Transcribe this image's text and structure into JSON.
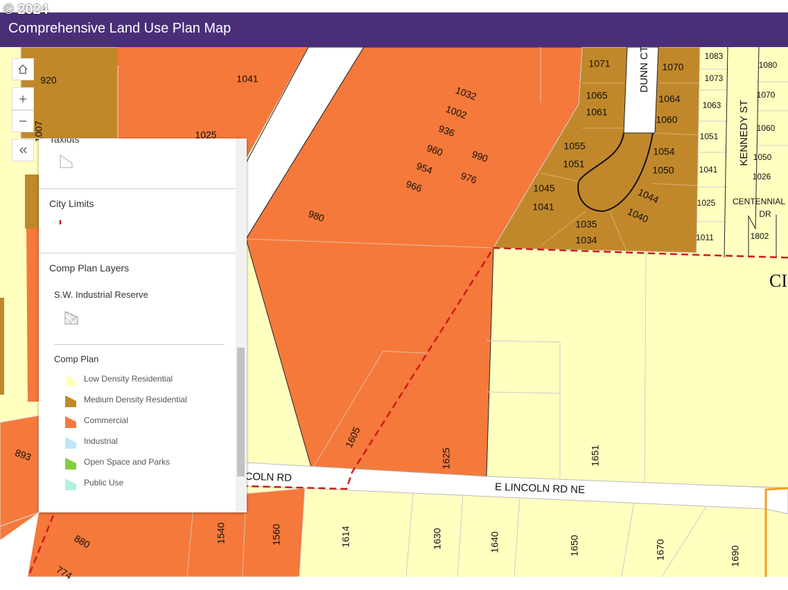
{
  "header": {
    "copyright": "© 2024",
    "title": "Comprehensive Land Use Plan Map"
  },
  "legend": {
    "taxlots": "Taxlots",
    "city_limits": "City Limits",
    "layers": "Comp Plan Layers",
    "reserve": "S.W. Industrial Reserve",
    "comp_plan": "Comp Plan",
    "items": [
      {
        "label": "Low Density Residential",
        "color": "#ffffc0"
      },
      {
        "label": "Medium Density Residential",
        "color": "#c1882b"
      },
      {
        "label": "Commercial",
        "color": "#f5793b"
      },
      {
        "label": "Industrial",
        "color": "#bfe6fa"
      },
      {
        "label": "Open Space and Parks",
        "color": "#7fd03c"
      },
      {
        "label": "Public Use",
        "color": "#b3f0dc"
      }
    ]
  },
  "map": {
    "labels": [
      "920",
      "1041",
      "1025",
      "1032",
      "1002",
      "936",
      "960",
      "990",
      "954",
      "976",
      "966",
      "980",
      "1071",
      "1065",
      "1061",
      "1055",
      "1051",
      "1045",
      "1041",
      "1035",
      "1034",
      "1044",
      "1040",
      "1070",
      "1064",
      "1060",
      "1054",
      "1050",
      "1083",
      "1073",
      "1063",
      "1051",
      "1041",
      "1025",
      "1011",
      "1080",
      "1070",
      "1060",
      "1050",
      "1026",
      "1802",
      "1605",
      "1625",
      "1651",
      "1614",
      "1630",
      "1640",
      "1650",
      "1670",
      "1690",
      "1560",
      "1540",
      "880",
      "893",
      "774",
      "1007"
    ],
    "streets": [
      "DUNN CT",
      "KENNEDY ST",
      "CENTENNIAL",
      "DR",
      "E LINCOLN RD NE",
      "E LINCOLN RD",
      "CI"
    ]
  }
}
